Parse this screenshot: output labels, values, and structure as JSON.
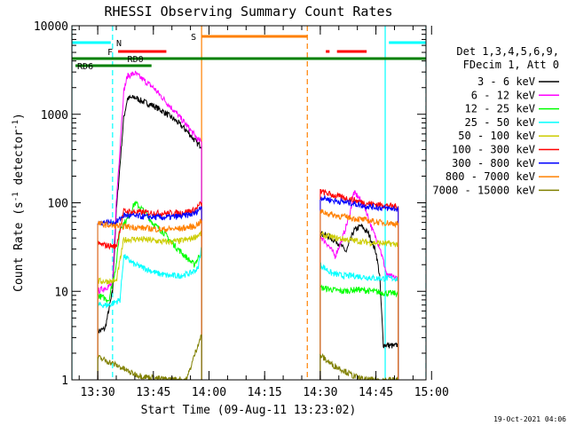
{
  "chart_data": {
    "type": "line",
    "title": "RHESSI Observing Summary Count Rates",
    "xlabel": "Start Time (09-Aug-11 13:23:02)",
    "ylabel": "Count Rate (s⁻¹ detector⁻¹)",
    "ylabel_parts": [
      "Count Rate (s",
      "-1",
      " detector",
      "-1",
      ")"
    ],
    "yscale": "log",
    "ylim": [
      1,
      10000
    ],
    "xlim": [
      "13:23:02",
      "14:58:30"
    ],
    "x_ticks": [
      "13:30",
      "13:45",
      "14:00",
      "14:15",
      "14:30",
      "14:45",
      "15:00"
    ],
    "y_ticks": [
      "1",
      "10",
      "100",
      "1000",
      "10000"
    ],
    "legend_header": [
      "Det 1,3,4,5,6,9,",
      "FDecim 1, Att 0"
    ],
    "legend_position": "right",
    "timestamp": "19-Oct-2021 04:06",
    "segments": [
      {
        "start": "13:30:00",
        "end": "13:58:00"
      },
      {
        "start": "14:30:00",
        "end": "14:51:00"
      }
    ],
    "series": [
      {
        "name": "3 - 6 keV",
        "color": "#000000",
        "points": [
          [
            "13:30:00",
            3.5
          ],
          [
            "13:32:00",
            3.8
          ],
          [
            "13:34:00",
            10
          ],
          [
            "13:35:00",
            80
          ],
          [
            "13:37:00",
            900
          ],
          [
            "13:38:00",
            1500
          ],
          [
            "13:40:00",
            1550
          ],
          [
            "13:42:00",
            1400
          ],
          [
            "13:45:00",
            1250
          ],
          [
            "13:48:00",
            1050
          ],
          [
            "13:51:00",
            850
          ],
          [
            "13:54:00",
            650
          ],
          [
            "13:57:00",
            460
          ],
          [
            "13:58:00",
            440
          ]
        ],
        "points2": [
          [
            "14:30:00",
            45
          ],
          [
            "14:32:00",
            42
          ],
          [
            "14:35:00",
            35
          ],
          [
            "14:37:00",
            28
          ],
          [
            "14:39:00",
            48
          ],
          [
            "14:41:00",
            55
          ],
          [
            "14:43:00",
            45
          ],
          [
            "14:45:00",
            28
          ],
          [
            "14:46:00",
            15
          ],
          [
            "14:47:00",
            2.5
          ],
          [
            "14:50:00",
            2.4
          ],
          [
            "14:51:00",
            2.5
          ]
        ]
      },
      {
        "name": "6 - 12 keV",
        "color": "#ff00ff",
        "points": [
          [
            "13:30:00",
            10
          ],
          [
            "13:34:00",
            12
          ],
          [
            "13:35:00",
            100
          ],
          [
            "13:37:00",
            1800
          ],
          [
            "13:38:00",
            2700
          ],
          [
            "13:40:00",
            2900
          ],
          [
            "13:42:00",
            2500
          ],
          [
            "13:45:00",
            2000
          ],
          [
            "13:48:00",
            1450
          ],
          [
            "13:51:00",
            1050
          ],
          [
            "13:54:00",
            750
          ],
          [
            "13:57:00",
            520
          ],
          [
            "13:58:00",
            480
          ]
        ],
        "points2": [
          [
            "14:30:00",
            42
          ],
          [
            "14:32:00",
            34
          ],
          [
            "14:34:00",
            25
          ],
          [
            "14:36:00",
            40
          ],
          [
            "14:38:00",
            75
          ],
          [
            "14:39:00",
            130
          ],
          [
            "14:40:00",
            120
          ],
          [
            "14:42:00",
            90
          ],
          [
            "14:44:00",
            50
          ],
          [
            "14:46:00",
            32
          ],
          [
            "14:48:00",
            15
          ],
          [
            "14:51:00",
            14
          ]
        ]
      },
      {
        "name": "12 - 25 keV",
        "color": "#00ff00",
        "points": [
          [
            "13:30:00",
            9
          ],
          [
            "13:33:00",
            8
          ],
          [
            "13:35:00",
            20
          ],
          [
            "13:36:00",
            52
          ],
          [
            "13:38:00",
            65
          ],
          [
            "13:40:00",
            100
          ],
          [
            "13:42:00",
            85
          ],
          [
            "13:45:00",
            58
          ],
          [
            "13:48:00",
            45
          ],
          [
            "13:51:00",
            32
          ],
          [
            "13:54:00",
            24
          ],
          [
            "13:56:00",
            20
          ],
          [
            "13:58:00",
            28
          ]
        ],
        "points2": [
          [
            "14:30:00",
            11
          ],
          [
            "14:33:00",
            10.5
          ],
          [
            "14:36:00",
            10
          ],
          [
            "14:40:00",
            10.5
          ],
          [
            "14:44:00",
            10
          ],
          [
            "14:48:00",
            9.5
          ],
          [
            "14:51:00",
            9.5
          ]
        ]
      },
      {
        "name": "25 - 50 keV",
        "color": "#00ffff",
        "points": [
          [
            "13:30:00",
            7
          ],
          [
            "13:33:00",
            7
          ],
          [
            "13:36:00",
            8
          ],
          [
            "13:37:00",
            25
          ],
          [
            "13:40:00",
            20
          ],
          [
            "13:43:00",
            18
          ],
          [
            "13:46:00",
            16
          ],
          [
            "13:49:00",
            15
          ],
          [
            "13:52:00",
            15
          ],
          [
            "13:55:00",
            16
          ],
          [
            "13:57:00",
            18
          ],
          [
            "13:58:00",
            32
          ]
        ],
        "points2": [
          [
            "14:30:00",
            20
          ],
          [
            "14:33:00",
            16
          ],
          [
            "14:36:00",
            15
          ],
          [
            "14:39:00",
            15
          ],
          [
            "14:42:00",
            14.5
          ],
          [
            "14:45:00",
            14
          ],
          [
            "14:48:00",
            14
          ],
          [
            "14:51:00",
            14
          ]
        ]
      },
      {
        "name": "50 - 100 keV",
        "color": "#cccc00",
        "points": [
          [
            "13:30:00",
            13
          ],
          [
            "13:35:00",
            13
          ],
          [
            "13:37:00",
            38
          ],
          [
            "13:40:00",
            39
          ],
          [
            "13:44:00",
            38
          ],
          [
            "13:48:00",
            36
          ],
          [
            "13:52:00",
            37
          ],
          [
            "13:55:00",
            39
          ],
          [
            "13:58:00",
            45
          ]
        ],
        "points2": [
          [
            "14:30:00",
            44
          ],
          [
            "14:34:00",
            40
          ],
          [
            "14:38:00",
            38
          ],
          [
            "14:42:00",
            36
          ],
          [
            "14:46:00",
            35
          ],
          [
            "14:51:00",
            34
          ]
        ]
      },
      {
        "name": "100 - 300 keV",
        "color": "#ff0000",
        "points": [
          [
            "13:30:00",
            34
          ],
          [
            "13:35:00",
            32
          ],
          [
            "13:37:00",
            80
          ],
          [
            "13:42:00",
            78
          ],
          [
            "13:47:00",
            76
          ],
          [
            "13:52:00",
            77
          ],
          [
            "13:56:00",
            82
          ],
          [
            "13:58:00",
            100
          ]
        ],
        "points2": [
          [
            "14:30:00",
            135
          ],
          [
            "14:34:00",
            120
          ],
          [
            "14:38:00",
            110
          ],
          [
            "14:42:00",
            100
          ],
          [
            "14:46:00",
            95
          ],
          [
            "14:51:00",
            90
          ]
        ]
      },
      {
        "name": "300 - 800 keV",
        "color": "#0000ff",
        "points": [
          [
            "13:30:00",
            60
          ],
          [
            "13:35:00",
            60
          ],
          [
            "13:37:00",
            72
          ],
          [
            "13:42:00",
            70
          ],
          [
            "13:47:00",
            68
          ],
          [
            "13:52:00",
            70
          ],
          [
            "13:56:00",
            75
          ],
          [
            "13:58:00",
            90
          ]
        ],
        "points2": [
          [
            "14:30:00",
            115
          ],
          [
            "14:34:00",
            105
          ],
          [
            "14:38:00",
            100
          ],
          [
            "14:42:00",
            92
          ],
          [
            "14:46:00",
            88
          ],
          [
            "14:51:00",
            85
          ]
        ]
      },
      {
        "name": "800 - 7000 keV",
        "color": "#ff8000",
        "points": [
          [
            "13:30:00",
            58
          ],
          [
            "13:34:00",
            55
          ],
          [
            "13:38:00",
            54
          ],
          [
            "13:42:00",
            52
          ],
          [
            "13:47:00",
            50
          ],
          [
            "13:52:00",
            51
          ],
          [
            "13:56:00",
            54
          ],
          [
            "13:58:00",
            62
          ]
        ],
        "points2": [
          [
            "14:30:00",
            80
          ],
          [
            "14:34:00",
            72
          ],
          [
            "14:38:00",
            68
          ],
          [
            "14:42:00",
            64
          ],
          [
            "14:46:00",
            60
          ],
          [
            "14:51:00",
            58
          ]
        ]
      },
      {
        "name": "7000 - 15000 keV",
        "color": "#808000",
        "points": [
          [
            "13:30:00",
            1.8
          ],
          [
            "13:33:00",
            1.6
          ],
          [
            "13:36:00",
            1.4
          ],
          [
            "13:39:00",
            1.2
          ],
          [
            "13:42:00",
            1.1
          ],
          [
            "13:45:00",
            1.05
          ],
          [
            "13:48:00",
            1.02
          ],
          [
            "13:51:00",
            1.01
          ],
          [
            "13:54:00",
            1.01
          ],
          [
            "13:57:00",
            2.5
          ],
          [
            "13:58:00",
            3.2
          ]
        ],
        "points2": [
          [
            "14:30:00",
            1.9
          ],
          [
            "14:33:00",
            1.5
          ],
          [
            "14:36:00",
            1.3
          ],
          [
            "14:39:00",
            1.1
          ],
          [
            "14:42:00",
            1.0
          ],
          [
            "14:45:00",
            1.0
          ],
          [
            "14:48:00",
            1.0
          ],
          [
            "14:51:00",
            1.0
          ]
        ]
      }
    ],
    "flag_bars": [
      {
        "label": "N",
        "color": "#00ffff",
        "start": "13:23:02",
        "end": "13:33:30"
      },
      {
        "label": "",
        "color": "#00ffff",
        "start": "14:48:30",
        "end": "14:58:30"
      },
      {
        "label": "F",
        "color": "#ff0000",
        "start": "13:35:30",
        "end": "13:48:30"
      },
      {
        "label": "",
        "color": "#ff0000",
        "start": "14:31:30",
        "end": "14:32:30"
      },
      {
        "label": "",
        "color": "#ff0000",
        "start": "14:34:30",
        "end": "14:42:30"
      },
      {
        "label": "S",
        "color": "#ff8000",
        "start": "13:58:00",
        "end": "14:26:30"
      },
      {
        "label": "RD0",
        "color": "#008000",
        "start": "13:23:02",
        "end": "14:58:30"
      },
      {
        "label": "RD6",
        "color": "#008000",
        "start": "13:24:00",
        "end": "13:44:30"
      }
    ],
    "vertical_lines": [
      {
        "color": "#00ffff",
        "style": "solid",
        "x": "13:23:02"
      },
      {
        "color": "#00ffff",
        "style": "dashed",
        "x": "13:34:00"
      },
      {
        "color": "#ff8000",
        "style": "solid",
        "x": "13:58:00"
      },
      {
        "color": "#ff8000",
        "style": "dashed",
        "x": "14:26:30"
      },
      {
        "color": "#00ffff",
        "style": "solid",
        "x": "14:47:30"
      },
      {
        "color": "#00ffff",
        "style": "dashed",
        "x": "14:58:30"
      }
    ]
  }
}
